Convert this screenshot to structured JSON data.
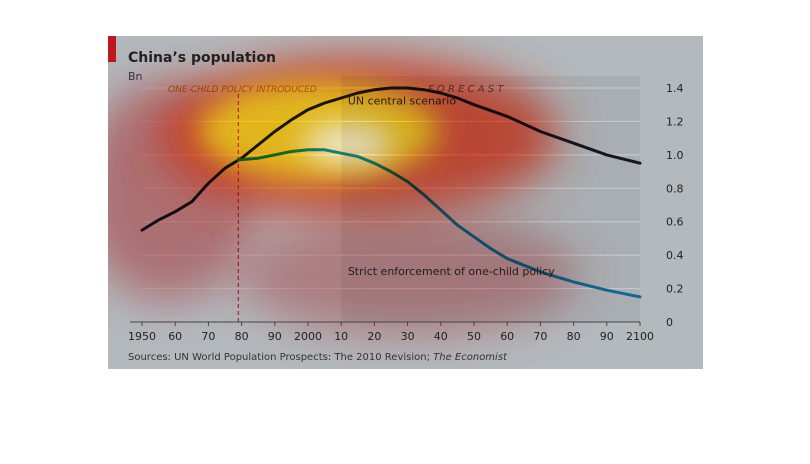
{
  "chart_data": {
    "type": "line",
    "title": "China’s population",
    "ylabel": "Bn",
    "annotation_policy": "ONE-CHILD POLICY INTRODUCED",
    "annotation_forecast": "F O R E C A S T",
    "source_prefix": "Sources: UN World Population Prospects: The 2010 Revision; ",
    "source_italic": "The Economist",
    "xlim": [
      1950,
      2100
    ],
    "ylim": [
      0,
      1.4
    ],
    "policy_year": 1979,
    "forecast_start": 2010,
    "x_ticks": [
      {
        "x": 1950,
        "label": "1950"
      },
      {
        "x": 1960,
        "label": "60"
      },
      {
        "x": 1970,
        "label": "70"
      },
      {
        "x": 1980,
        "label": "80"
      },
      {
        "x": 1990,
        "label": "90"
      },
      {
        "x": 2000,
        "label": "2000"
      },
      {
        "x": 2010,
        "label": "10"
      },
      {
        "x": 2020,
        "label": "20"
      },
      {
        "x": 2030,
        "label": "30"
      },
      {
        "x": 2040,
        "label": "40"
      },
      {
        "x": 2050,
        "label": "50"
      },
      {
        "x": 2060,
        "label": "60"
      },
      {
        "x": 2070,
        "label": "70"
      },
      {
        "x": 2080,
        "label": "80"
      },
      {
        "x": 2090,
        "label": "90"
      },
      {
        "x": 2100,
        "label": "2100"
      }
    ],
    "y_ticks": [
      {
        "y": 0,
        "label": "0"
      },
      {
        "y": 0.2,
        "label": "0.2"
      },
      {
        "y": 0.4,
        "label": "0.4"
      },
      {
        "y": 0.6,
        "label": "0.6"
      },
      {
        "y": 0.8,
        "label": "0.8"
      },
      {
        "y": 1.0,
        "label": "1.0"
      },
      {
        "y": 1.2,
        "label": "1.2"
      },
      {
        "y": 1.4,
        "label": "1.4"
      }
    ],
    "series": [
      {
        "name": "UN central scenario",
        "color": "#1c1c2a",
        "points": [
          [
            1950,
            0.55
          ],
          [
            1955,
            0.61
          ],
          [
            1960,
            0.66
          ],
          [
            1965,
            0.72
          ],
          [
            1970,
            0.83
          ],
          [
            1975,
            0.92
          ],
          [
            1980,
            0.98
          ],
          [
            1985,
            1.06
          ],
          [
            1990,
            1.14
          ],
          [
            1995,
            1.21
          ],
          [
            2000,
            1.27
          ],
          [
            2005,
            1.31
          ],
          [
            2010,
            1.34
          ],
          [
            2015,
            1.37
          ],
          [
            2020,
            1.39
          ],
          [
            2025,
            1.4
          ],
          [
            2030,
            1.4
          ],
          [
            2035,
            1.39
          ],
          [
            2040,
            1.37
          ],
          [
            2045,
            1.34
          ],
          [
            2050,
            1.3
          ],
          [
            2060,
            1.23
          ],
          [
            2070,
            1.14
          ],
          [
            2080,
            1.07
          ],
          [
            2090,
            1.0
          ],
          [
            2100,
            0.95
          ]
        ]
      },
      {
        "name": "Strict enforcement of one-child policy",
        "color": "#1b84b4",
        "points": [
          [
            1979,
            0.97
          ],
          [
            1985,
            0.98
          ],
          [
            1990,
            1.0
          ],
          [
            1995,
            1.02
          ],
          [
            2000,
            1.03
          ],
          [
            2005,
            1.03
          ],
          [
            2010,
            1.01
          ],
          [
            2015,
            0.99
          ],
          [
            2020,
            0.95
          ],
          [
            2025,
            0.9
          ],
          [
            2030,
            0.84
          ],
          [
            2035,
            0.76
          ],
          [
            2040,
            0.67
          ],
          [
            2045,
            0.58
          ],
          [
            2050,
            0.51
          ],
          [
            2055,
            0.44
          ],
          [
            2060,
            0.38
          ],
          [
            2065,
            0.34
          ],
          [
            2070,
            0.3
          ],
          [
            2080,
            0.24
          ],
          [
            2090,
            0.19
          ],
          [
            2100,
            0.15
          ]
        ]
      }
    ],
    "series_labels": [
      {
        "name": "UN central scenario",
        "at": [
          2012,
          1.3
        ]
      },
      {
        "name": "Strict enforcement of one-child policy",
        "at": [
          2012,
          0.28
        ]
      }
    ]
  },
  "colors": {
    "background": "#ececec",
    "forecast_shade": "#dedede",
    "accent": "#c0171e",
    "grid": "#ffffff",
    "axis": "#444444",
    "policy_line": "#c0171e"
  }
}
